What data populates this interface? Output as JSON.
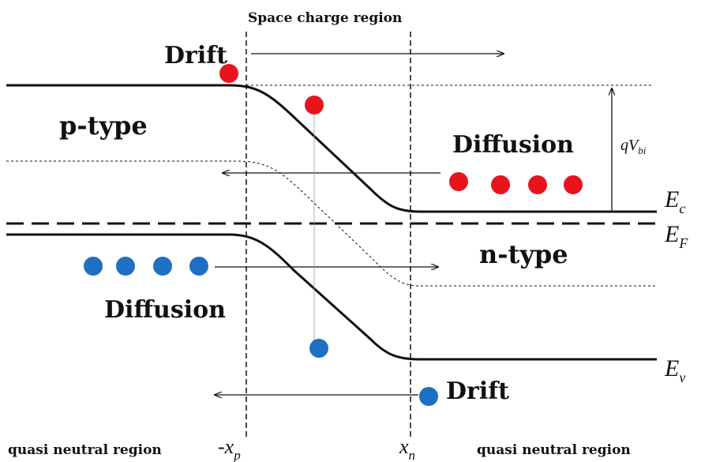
{
  "labels": {
    "space_charge_region": "Space charge region",
    "drift_top": "Drift",
    "drift_bottom": "Drift",
    "p_type": "p-type",
    "n_type": "n-type",
    "diffusion_electrons": "Diffusion",
    "diffusion_holes": "Diffusion",
    "qvbi_main": "qV",
    "qvbi_sub": "bi",
    "ec_main": "E",
    "ec_sub": "c",
    "ef_main": "E",
    "ef_sub": "F",
    "ev_main": "E",
    "ev_sub": "v",
    "xp_main": "-x",
    "xp_sub": "p",
    "xn_main": "x",
    "xn_sub": "n",
    "quasi_left": "quasi neutral region",
    "quasi_right": "quasi neutral region"
  },
  "colors": {
    "electron": "#e8141c",
    "hole": "#1f6fc2",
    "line": "#111111"
  }
}
